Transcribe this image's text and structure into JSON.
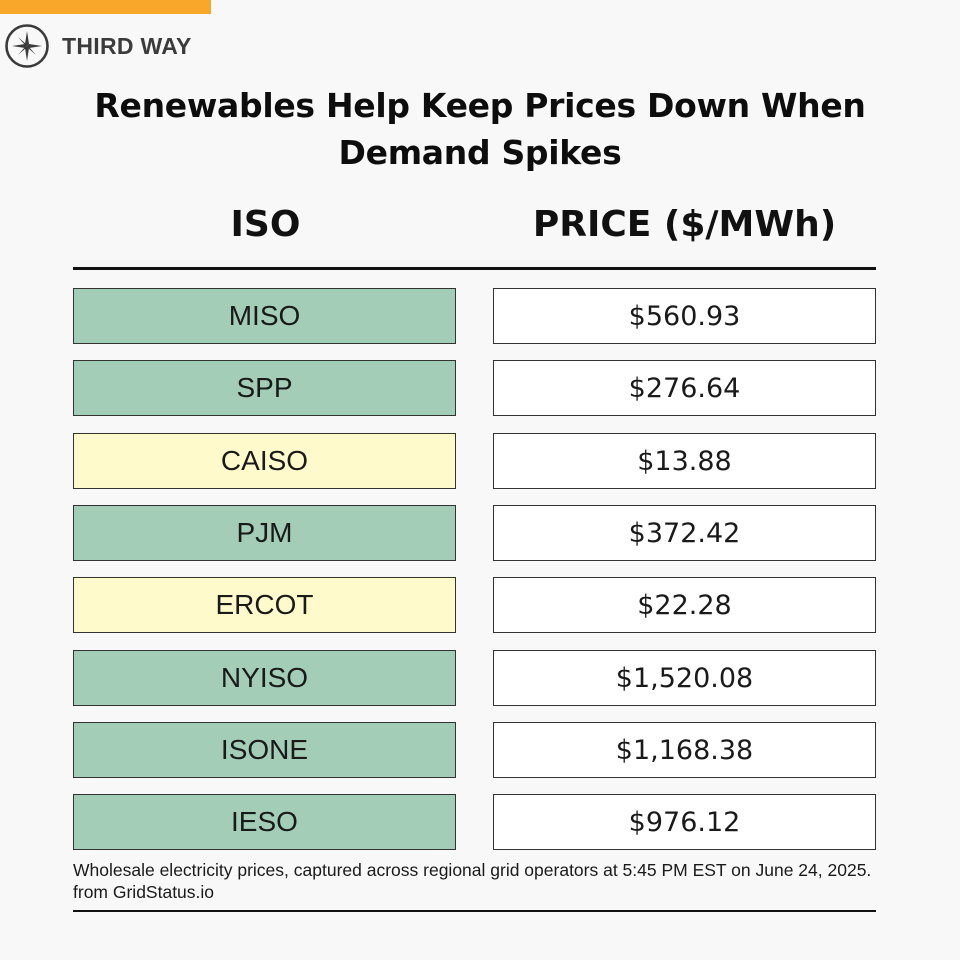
{
  "brand": {
    "name": "THIRD WAY",
    "logo_icon": "compass-star-icon",
    "accent_color": "#f9a72b"
  },
  "title": "Renewables Help Keep Prices Down When Demand Spikes",
  "footnote": "Wholesale electricity prices, captured across regional grid operators at 5:45 PM EST on June 24, 2025. from GridStatus.io",
  "colors": {
    "green": "#a3cdb6",
    "yellow": "#fffacb"
  },
  "chart_data": {
    "type": "table",
    "columns": [
      "ISO",
      "PRICE ($/MWh)"
    ],
    "rows": [
      {
        "iso": "MISO",
        "price": "$560.93",
        "value": 560.93,
        "highlight": "green"
      },
      {
        "iso": "SPP",
        "price": "$276.64",
        "value": 276.64,
        "highlight": "green"
      },
      {
        "iso": "CAISO",
        "price": "$13.88",
        "value": 13.88,
        "highlight": "yellow"
      },
      {
        "iso": "PJM",
        "price": "$372.42",
        "value": 372.42,
        "highlight": "green"
      },
      {
        "iso": "ERCOT",
        "price": "$22.28",
        "value": 22.28,
        "highlight": "yellow"
      },
      {
        "iso": "NYISO",
        "price": "$1,520.08",
        "value": 1520.08,
        "highlight": "green"
      },
      {
        "iso": "ISONE",
        "price": "$1,168.38",
        "value": 1168.38,
        "highlight": "green"
      },
      {
        "iso": "IESO",
        "price": "$976.12",
        "value": 976.12,
        "highlight": "green"
      }
    ]
  }
}
